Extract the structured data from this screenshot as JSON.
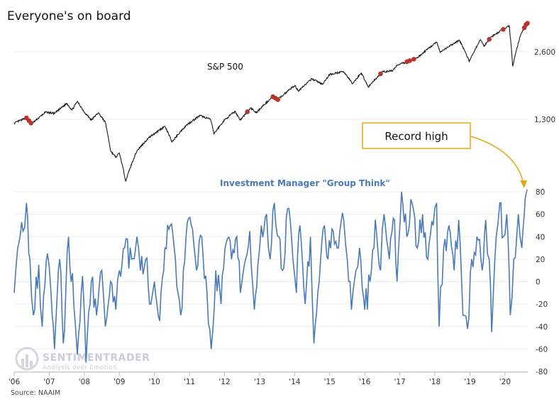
{
  "title": "Everyone's on board",
  "source": "Source: NAAIM",
  "logo": {
    "main": "SENTIMENTRADER",
    "sub": "Analysis over Emotion"
  },
  "callout": {
    "text": "Record high"
  },
  "colors": {
    "sp500_line": "#1a1a1a",
    "marker": "#b5362e",
    "naaim_line": "#4a7ab8",
    "callout_border": "#e6a817",
    "grid": "#ececec",
    "axis": "#bbbbbb"
  },
  "chart_data": [
    {
      "type": "line",
      "series": [
        {
          "name": "S&P 500"
        }
      ],
      "y_scale": "log",
      "y_ticks": [
        1300,
        2600
      ],
      "y_tick_labels": [
        "1,300",
        "2,600"
      ],
      "x_start": 2006.0,
      "x_end": 2020.65,
      "anchors": [
        [
          2006.0,
          1250
        ],
        [
          2006.35,
          1320
        ],
        [
          2006.5,
          1240
        ],
        [
          2006.9,
          1400
        ],
        [
          2007.15,
          1380
        ],
        [
          2007.5,
          1530
        ],
        [
          2007.65,
          1430
        ],
        [
          2007.8,
          1560
        ],
        [
          2008.0,
          1400
        ],
        [
          2008.2,
          1290
        ],
        [
          2008.4,
          1390
        ],
        [
          2008.6,
          1260
        ],
        [
          2008.75,
          940
        ],
        [
          2008.9,
          880
        ],
        [
          2009.0,
          920
        ],
        [
          2009.18,
          690
        ],
        [
          2009.5,
          940
        ],
        [
          2009.85,
          1080
        ],
        [
          2010.3,
          1210
        ],
        [
          2010.5,
          1030
        ],
        [
          2010.9,
          1220
        ],
        [
          2011.3,
          1350
        ],
        [
          2011.6,
          1300
        ],
        [
          2011.7,
          1120
        ],
        [
          2012.0,
          1290
        ],
        [
          2012.3,
          1410
        ],
        [
          2012.45,
          1290
        ],
        [
          2012.75,
          1460
        ],
        [
          2012.9,
          1390
        ],
        [
          2013.4,
          1650
        ],
        [
          2013.5,
          1580
        ],
        [
          2014.0,
          1840
        ],
        [
          2014.1,
          1740
        ],
        [
          2014.5,
          1970
        ],
        [
          2014.8,
          1860
        ],
        [
          2015.0,
          2060
        ],
        [
          2015.4,
          2120
        ],
        [
          2015.65,
          1870
        ],
        [
          2015.9,
          2090
        ],
        [
          2016.1,
          1810
        ],
        [
          2016.5,
          2110
        ],
        [
          2016.8,
          2140
        ],
        [
          2016.9,
          2250
        ],
        [
          2017.5,
          2440
        ],
        [
          2018.05,
          2870
        ],
        [
          2018.15,
          2580
        ],
        [
          2018.7,
          2930
        ],
        [
          2018.98,
          2350
        ],
        [
          2019.3,
          2940
        ],
        [
          2019.4,
          2750
        ],
        [
          2019.6,
          3020
        ],
        [
          2020.12,
          3390
        ],
        [
          2020.22,
          2240
        ],
        [
          2020.45,
          3100
        ],
        [
          2020.62,
          3480
        ]
      ],
      "markers_x": [
        2006.35,
        2006.42,
        2006.48,
        2012.65,
        2013.38,
        2013.45,
        2013.52,
        2016.45,
        2017.2,
        2017.28,
        2017.4,
        2019.55,
        2019.95,
        2020.55,
        2020.6,
        2020.64
      ]
    },
    {
      "type": "line",
      "title": "Investment Manager \"Group Think\"",
      "series": [
        {
          "name": "Investment Manager \"Group Think\""
        }
      ],
      "y_range": [
        -80,
        80
      ],
      "y_ticks": [
        -80,
        -60,
        -40,
        -20,
        0,
        20,
        40,
        60,
        80
      ],
      "x_start": 2006.0,
      "x_end": 2020.65,
      "anchors": [
        [
          2006.0,
          -10
        ],
        [
          2006.1,
          30
        ],
        [
          2006.25,
          45
        ],
        [
          2006.35,
          70
        ],
        [
          2006.45,
          20
        ],
        [
          2006.55,
          -30
        ],
        [
          2006.7,
          15
        ],
        [
          2006.8,
          -40
        ],
        [
          2006.95,
          25
        ],
        [
          2007.05,
          -10
        ],
        [
          2007.15,
          -60
        ],
        [
          2007.3,
          20
        ],
        [
          2007.4,
          -55
        ],
        [
          2007.55,
          40
        ],
        [
          2007.7,
          -20
        ],
        [
          2007.8,
          -65
        ],
        [
          2007.95,
          5
        ],
        [
          2008.05,
          -72
        ],
        [
          2008.2,
          0
        ],
        [
          2008.35,
          -30
        ],
        [
          2008.5,
          10
        ],
        [
          2008.6,
          -40
        ],
        [
          2008.75,
          0
        ],
        [
          2008.9,
          -25
        ],
        [
          2009.0,
          10
        ],
        [
          2009.15,
          30
        ],
        [
          2009.35,
          20
        ],
        [
          2009.5,
          40
        ],
        [
          2009.6,
          10
        ],
        [
          2009.75,
          20
        ],
        [
          2009.9,
          -20
        ],
        [
          2010.0,
          0
        ],
        [
          2010.15,
          -35
        ],
        [
          2010.3,
          30
        ],
        [
          2010.45,
          50
        ],
        [
          2010.6,
          20
        ],
        [
          2010.75,
          -30
        ],
        [
          2010.9,
          40
        ],
        [
          2011.05,
          50
        ],
        [
          2011.2,
          10
        ],
        [
          2011.35,
          40
        ],
        [
          2011.5,
          -10
        ],
        [
          2011.62,
          -60
        ],
        [
          2011.75,
          10
        ],
        [
          2011.9,
          -20
        ],
        [
          2012.05,
          35
        ],
        [
          2012.2,
          20
        ],
        [
          2012.35,
          40
        ],
        [
          2012.45,
          -10
        ],
        [
          2012.6,
          20
        ],
        [
          2012.72,
          45
        ],
        [
          2012.85,
          -25
        ],
        [
          2012.95,
          15
        ],
        [
          2013.05,
          50
        ],
        [
          2013.2,
          60
        ],
        [
          2013.3,
          20
        ],
        [
          2013.42,
          70
        ],
        [
          2013.55,
          40
        ],
        [
          2013.65,
          10
        ],
        [
          2013.8,
          65
        ],
        [
          2013.95,
          20
        ],
        [
          2014.05,
          -10
        ],
        [
          2014.15,
          50
        ],
        [
          2014.3,
          -20
        ],
        [
          2014.45,
          40
        ],
        [
          2014.55,
          -55
        ],
        [
          2014.7,
          0
        ],
        [
          2014.85,
          50
        ],
        [
          2014.95,
          20
        ],
        [
          2015.1,
          45
        ],
        [
          2015.25,
          30
        ],
        [
          2015.4,
          55
        ],
        [
          2015.5,
          20
        ],
        [
          2015.62,
          -25
        ],
        [
          2015.75,
          10
        ],
        [
          2015.85,
          30
        ],
        [
          2016.0,
          -25
        ],
        [
          2016.15,
          0
        ],
        [
          2016.3,
          55
        ],
        [
          2016.45,
          10
        ],
        [
          2016.55,
          60
        ],
        [
          2016.7,
          20
        ],
        [
          2016.85,
          55
        ],
        [
          2016.92,
          0
        ],
        [
          2017.05,
          80
        ],
        [
          2017.2,
          40
        ],
        [
          2017.35,
          70
        ],
        [
          2017.5,
          30
        ],
        [
          2017.65,
          60
        ],
        [
          2017.8,
          20
        ],
        [
          2017.95,
          50
        ],
        [
          2018.05,
          70
        ],
        [
          2018.12,
          -40
        ],
        [
          2018.25,
          30
        ],
        [
          2018.4,
          50
        ],
        [
          2018.55,
          10
        ],
        [
          2018.68,
          55
        ],
        [
          2018.8,
          -30
        ],
        [
          2018.93,
          -42
        ],
        [
          2019.05,
          20
        ],
        [
          2019.2,
          40
        ],
        [
          2019.35,
          10
        ],
        [
          2019.45,
          55
        ],
        [
          2019.55,
          20
        ],
        [
          2019.62,
          -45
        ],
        [
          2019.75,
          40
        ],
        [
          2019.85,
          70
        ],
        [
          2019.95,
          40
        ],
        [
          2020.05,
          60
        ],
        [
          2020.15,
          -30
        ],
        [
          2020.25,
          20
        ],
        [
          2020.38,
          60
        ],
        [
          2020.48,
          30
        ],
        [
          2020.55,
          60
        ],
        [
          2020.6,
          78
        ],
        [
          2020.63,
          82
        ]
      ]
    }
  ],
  "x_axis": {
    "ticks": [
      2006,
      2007,
      2008,
      2009,
      2010,
      2011,
      2012,
      2013,
      2014,
      2015,
      2016,
      2017,
      2018,
      2019,
      2020
    ],
    "labels": [
      "'06",
      "'07",
      "'08",
      "'09",
      "'10",
      "'11",
      "'12",
      "'13",
      "'14",
      "'15",
      "'16",
      "'17",
      "'18",
      "'19",
      "'20"
    ]
  }
}
